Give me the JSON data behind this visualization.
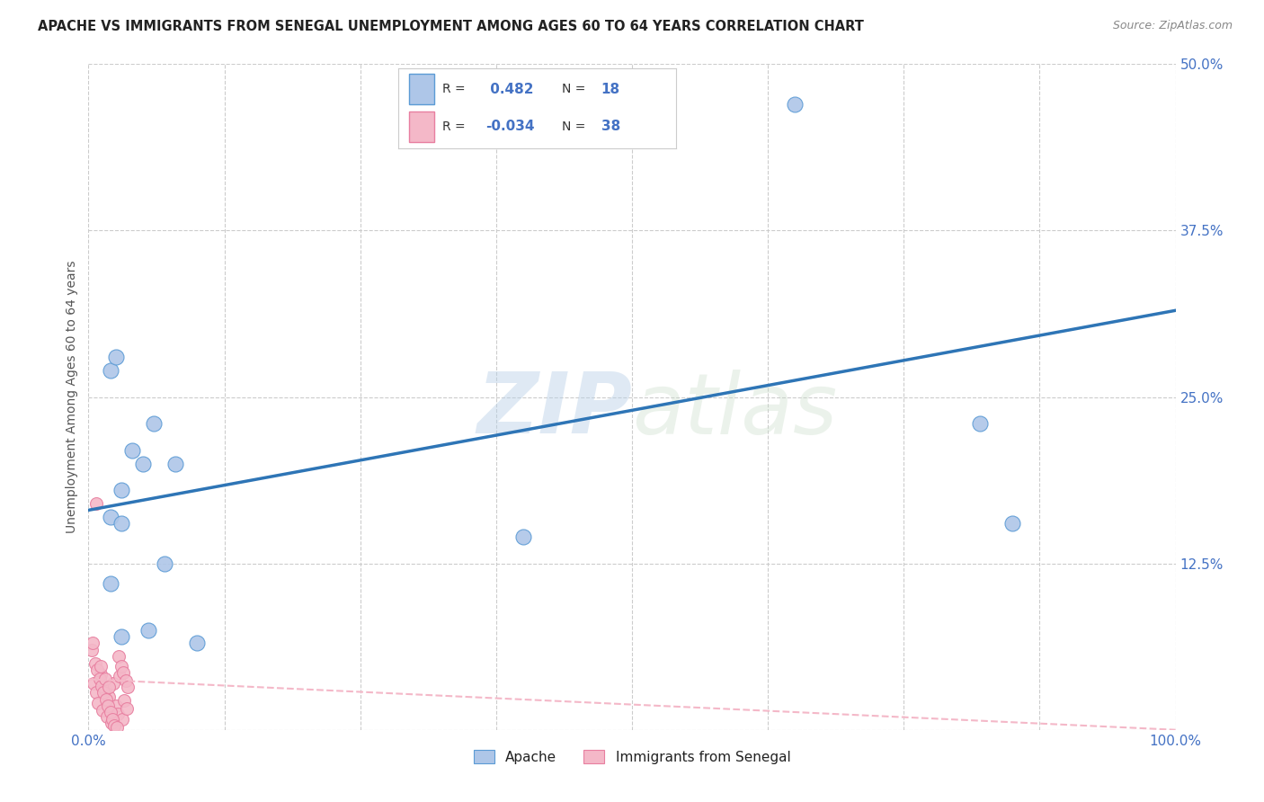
{
  "title": "APACHE VS IMMIGRANTS FROM SENEGAL UNEMPLOYMENT AMONG AGES 60 TO 64 YEARS CORRELATION CHART",
  "source": "Source: ZipAtlas.com",
  "ylabel": "Unemployment Among Ages 60 to 64 years",
  "xlim": [
    0,
    1.0
  ],
  "ylim": [
    0,
    0.5
  ],
  "xticks": [
    0.0,
    0.125,
    0.25,
    0.375,
    0.5,
    0.625,
    0.75,
    0.875,
    1.0
  ],
  "xticklabels": [
    "0.0%",
    "",
    "",
    "",
    "",
    "",
    "",
    "",
    "100.0%"
  ],
  "yticks": [
    0.0,
    0.125,
    0.25,
    0.375,
    0.5
  ],
  "yticklabels": [
    "",
    "12.5%",
    "25.0%",
    "37.5%",
    "50.0%"
  ],
  "watermark_zip": "ZIP",
  "watermark_atlas": "atlas",
  "apache_color": "#aec6e8",
  "apache_edge_color": "#5b9bd5",
  "senegal_color": "#f4b8c8",
  "senegal_edge_color": "#e87fa0",
  "trend_apache_color": "#2e75b6",
  "trend_senegal_color": "#f4b8c8",
  "apache_R": 0.482,
  "apache_N": 18,
  "senegal_R": -0.034,
  "senegal_N": 38,
  "apache_trend_x0": 0.0,
  "apache_trend_y0": 0.165,
  "apache_trend_x1": 1.0,
  "apache_trend_y1": 0.315,
  "senegal_trend_x0": 0.0,
  "senegal_trend_y0": 0.038,
  "senegal_trend_x1": 1.0,
  "senegal_trend_y1": 0.0,
  "apache_scatter_x": [
    0.02,
    0.025,
    0.04,
    0.06,
    0.08,
    0.1,
    0.03,
    0.65,
    0.82,
    0.02,
    0.03,
    0.05,
    0.07,
    0.02,
    0.03,
    0.055,
    0.4,
    0.85
  ],
  "apache_scatter_y": [
    0.27,
    0.28,
    0.21,
    0.23,
    0.2,
    0.065,
    0.18,
    0.47,
    0.23,
    0.16,
    0.155,
    0.2,
    0.125,
    0.11,
    0.07,
    0.075,
    0.145,
    0.155
  ],
  "senegal_scatter_x": [
    0.005,
    0.007,
    0.009,
    0.011,
    0.013,
    0.015,
    0.017,
    0.019,
    0.021,
    0.023,
    0.025,
    0.027,
    0.029,
    0.031,
    0.033,
    0.035,
    0.003,
    0.006,
    0.008,
    0.01,
    0.012,
    0.014,
    0.016,
    0.018,
    0.02,
    0.022,
    0.024,
    0.026,
    0.028,
    0.03,
    0.032,
    0.034,
    0.036,
    0.004,
    0.007,
    0.011,
    0.015,
    0.019
  ],
  "senegal_scatter_y": [
    0.035,
    0.028,
    0.02,
    0.042,
    0.015,
    0.03,
    0.01,
    0.025,
    0.005,
    0.035,
    0.018,
    0.012,
    0.04,
    0.008,
    0.022,
    0.016,
    0.06,
    0.05,
    0.045,
    0.038,
    0.033,
    0.028,
    0.023,
    0.018,
    0.013,
    0.008,
    0.003,
    0.002,
    0.055,
    0.048,
    0.043,
    0.037,
    0.032,
    0.065,
    0.17,
    0.048,
    0.038,
    0.032
  ],
  "legend_label_apache": "Apache",
  "legend_label_senegal": "Immigrants from Senegal",
  "grid_color": "#cccccc",
  "background_color": "#ffffff",
  "title_color": "#222222",
  "axis_label_color": "#555555",
  "tick_color": "#4472c4",
  "legend_box_color": "#4472c4",
  "legend_R_color": "#333333",
  "legend_val_color": "#4472c4"
}
